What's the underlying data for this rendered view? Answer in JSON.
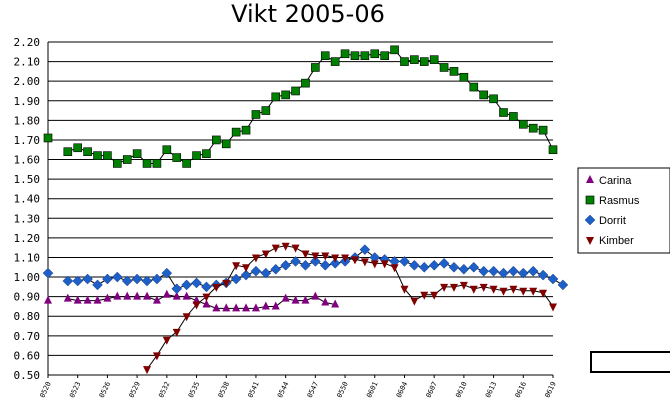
{
  "chart_data": {
    "type": "line",
    "title": "Vikt 2005-06",
    "xlabel": "",
    "ylabel": "",
    "ylim": [
      0.5,
      2.2
    ],
    "yticks": [
      "2.20",
      "2.10",
      "2.00",
      "1.90",
      "1.80",
      "1.70",
      "1.60",
      "1.50",
      "1.40",
      "1.30",
      "1.20",
      "1.10",
      "1.00",
      "0.90",
      "0.80",
      "0.70",
      "0.60",
      "0.50"
    ],
    "x_tick_labels": [
      "0520",
      "0523",
      "0526",
      "0529",
      "0532",
      "0535",
      "0538",
      "0541",
      "0544",
      "0547",
      "0550",
      "0601",
      "0604",
      "0607",
      "0610",
      "0613",
      "0616",
      "0619"
    ],
    "grid": "horizontal",
    "legend_position": "right",
    "series": [
      {
        "name": "Carina",
        "color": "#800080",
        "marker": "triangle-up",
        "values": [
          0.88,
          null,
          0.89,
          0.88,
          0.88,
          0.88,
          0.89,
          0.9,
          0.9,
          0.9,
          0.9,
          0.88,
          0.91,
          0.9,
          0.9,
          0.88,
          0.86,
          0.84,
          0.84,
          0.84,
          0.84,
          0.84,
          0.85,
          0.85,
          0.89,
          0.88,
          0.88,
          0.9,
          0.87,
          0.86
        ]
      },
      {
        "name": "Rasmus",
        "color": "#008000",
        "marker": "square",
        "values": [
          1.71,
          null,
          1.64,
          1.66,
          1.64,
          1.62,
          1.62,
          1.58,
          1.6,
          1.63,
          1.58,
          1.58,
          1.65,
          1.61,
          1.58,
          1.62,
          1.63,
          1.7,
          1.68,
          1.74,
          1.75,
          1.83,
          1.85,
          1.92,
          1.93,
          1.95,
          1.99,
          2.07,
          2.13,
          2.1,
          2.14,
          2.13,
          2.13,
          2.14,
          2.13,
          2.16,
          2.1,
          2.11,
          2.1,
          2.11,
          2.07,
          2.05,
          2.02,
          1.97,
          1.93,
          1.91,
          1.84,
          1.82,
          1.78,
          1.76,
          1.75,
          1.65
        ]
      },
      {
        "name": "Dorrit",
        "color": "#1f5fc8",
        "marker": "diamond",
        "values": [
          1.02,
          null,
          0.98,
          0.98,
          0.99,
          0.96,
          0.99,
          1.0,
          0.98,
          0.99,
          0.98,
          0.99,
          1.02,
          0.94,
          0.96,
          0.97,
          0.95,
          0.96,
          0.97,
          0.99,
          1.01,
          1.03,
          1.02,
          1.04,
          1.06,
          1.08,
          1.06,
          1.08,
          1.06,
          1.07,
          1.08,
          1.1,
          1.14,
          1.1,
          1.09,
          1.08,
          1.08,
          1.06,
          1.05,
          1.06,
          1.07,
          1.05,
          1.04,
          1.05,
          1.03,
          1.03,
          1.02,
          1.03,
          1.02,
          1.03,
          1.01,
          0.99,
          0.96
        ]
      },
      {
        "name": "Kimber",
        "color": "#800000",
        "marker": "triangle-down",
        "values": [
          null,
          null,
          null,
          null,
          null,
          null,
          null,
          null,
          null,
          null,
          0.53,
          0.6,
          0.68,
          0.72,
          0.8,
          0.86,
          0.9,
          0.95,
          0.97,
          1.06,
          1.05,
          1.1,
          1.12,
          1.15,
          1.16,
          1.15,
          1.12,
          1.11,
          1.11,
          1.1,
          1.1,
          1.09,
          1.08,
          1.07,
          1.07,
          1.05,
          0.94,
          0.88,
          0.91,
          0.91,
          0.95,
          0.95,
          0.96,
          0.94,
          0.95,
          0.94,
          0.93,
          0.94,
          0.93,
          0.93,
          0.92,
          0.85
        ]
      }
    ]
  }
}
